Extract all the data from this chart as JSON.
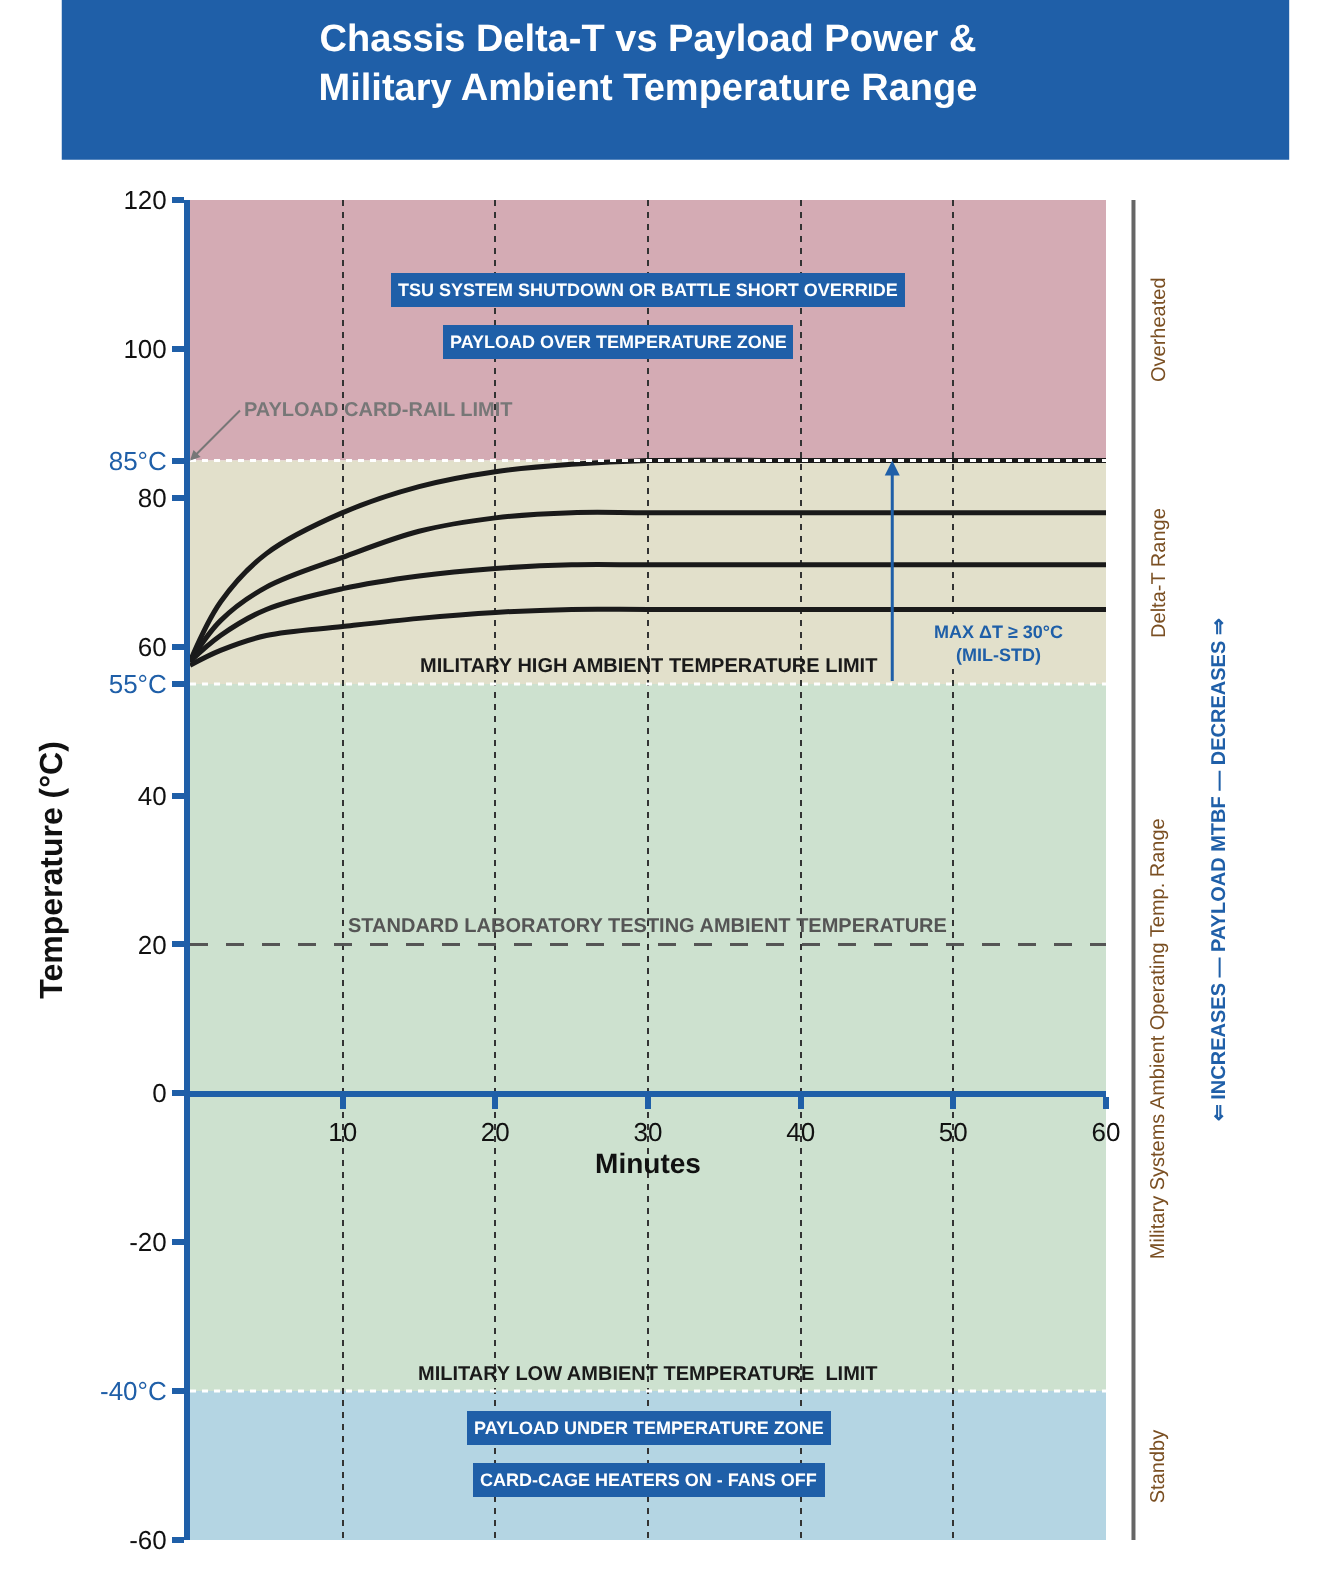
{
  "chart_data": {
    "type": "line",
    "title": "Chassis Delta-T vs Payload Power &\nMilitary Ambient Temperature Range",
    "xlabel": "Minutes",
    "ylabel": "Temperature (°C)",
    "x": [
      0,
      2,
      5,
      10,
      15,
      20,
      25,
      30,
      40,
      50,
      60
    ],
    "series": [
      {
        "color": "#1a1a1a",
        "values": [
          58,
          66,
          72.5,
          78,
          81.5,
          83.5,
          84.5,
          85,
          85,
          85,
          85
        ]
      },
      {
        "color": "#1a1a1a",
        "values": [
          58,
          63.5,
          68,
          72,
          75.5,
          77.3,
          78,
          78,
          78,
          78,
          78
        ]
      },
      {
        "color": "#1a1a1a",
        "values": [
          58,
          61.5,
          65,
          67.8,
          69.5,
          70.5,
          71,
          71,
          71,
          71,
          71
        ]
      },
      {
        "color": "#1a1a1a",
        "values": [
          57.5,
          59.5,
          61.5,
          62.7,
          63.8,
          64.6,
          65,
          65,
          65,
          65,
          65
        ]
      }
    ],
    "xlim": [
      0,
      60
    ],
    "xticks": [
      10,
      20,
      30,
      40,
      50,
      60
    ],
    "ylim": [
      -60,
      120
    ],
    "yticks": [
      -60,
      -20,
      {
        "value": -40,
        "label": "-40°C"
      },
      0,
      20,
      40,
      {
        "value": 55,
        "label": "55°C"
      },
      60,
      80,
      {
        "value": 85,
        "label": "85°C"
      },
      100,
      120
    ],
    "grid": "x",
    "marker": "none",
    "line_style": "solid",
    "bands": [
      {
        "axis": "y",
        "from": 85,
        "to": 120,
        "label": "Overheated",
        "color": "#d4abb4"
      },
      {
        "axis": "y",
        "from": 55,
        "to": 85,
        "label": "Delta-T Range",
        "color": "#e2e0cb"
      },
      {
        "axis": "y",
        "from": -40,
        "to": 55,
        "label": "Military Systems Ambient Operating Temp. Range",
        "color": "#cde1cf"
      },
      {
        "axis": "y",
        "from": -60,
        "to": -40,
        "label": "Standby",
        "color": "#b4d5e3"
      }
    ],
    "ref_lines": [
      {
        "axis": "y",
        "value": 85,
        "color": "#ffffff",
        "line_style": "dotted"
      },
      {
        "axis": "y",
        "value": 55,
        "label": "MILITARY HIGH AMBIENT TEMPERATURE LIMIT",
        "color": "#ffffff",
        "line_style": "dotted"
      },
      {
        "axis": "y",
        "value": 20,
        "label": "STANDARD LABORATORY TESTING AMBIENT TEMPERATURE",
        "color": "#555555",
        "line_style": "dashed"
      },
      {
        "axis": "y",
        "value": -40,
        "label": "MILITARY LOW AMBIENT TEMPERATURE  LIMIT",
        "color": "#ffffff",
        "line_style": "dotted"
      }
    ],
    "annotations": [
      "TSU SYSTEM SHUTDOWN OR BATTLE SHORT OVERRIDE",
      "PAYLOAD OVER TEMPERATURE ZONE",
      {
        "text": "PAYLOAD CARD-RAIL LIMIT",
        "x": 0,
        "y": 85
      },
      "MAX ΔT ≥ 30°C\n(MIL-STD)",
      "PAYLOAD UNDER TEMPERATURE ZONE",
      "CARD-CAGE HEATERS ON - FANS OFF",
      "⇐ INCREASES — PAYLOAD MTBF — DECREASES ⇒"
    ]
  }
}
